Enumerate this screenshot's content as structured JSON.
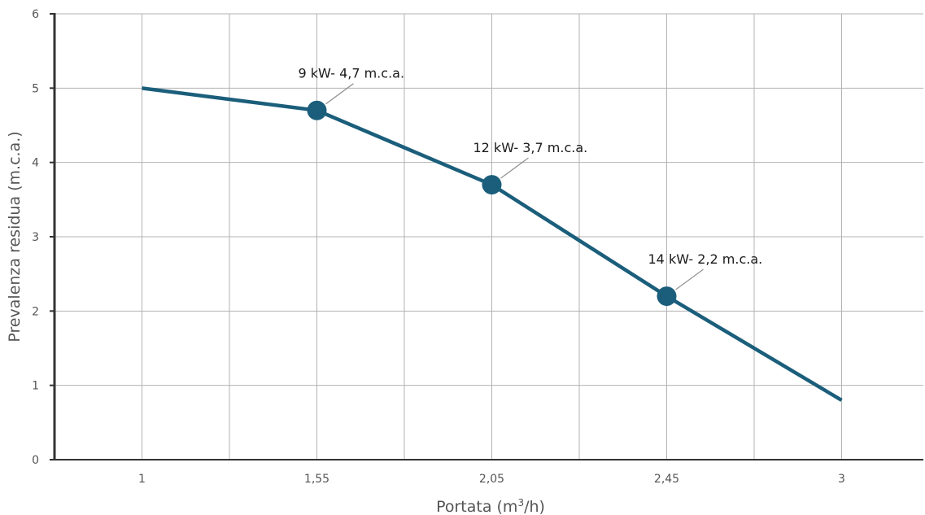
{
  "chart_data": {
    "type": "line",
    "title": "",
    "xlabel_parts": {
      "before": "Portata (m",
      "sup": "3",
      "after": "/h)"
    },
    "ylabel": "Prevalenza residua (m.c.a.)",
    "categories": [
      "1",
      "1,55",
      "2,05",
      "2,45",
      "3"
    ],
    "y_ticks": [
      "0",
      "1",
      "2",
      "3",
      "4",
      "5",
      "6"
    ],
    "ylim": [
      0,
      6
    ],
    "grid": true,
    "line_color": "#1b5e7b",
    "grid_color": "#b3b3b3",
    "axis_color": "#333333",
    "series": [
      {
        "values": [
          5.0,
          4.7,
          3.7,
          2.2,
          0.8
        ]
      }
    ],
    "markers": [
      1,
      2,
      3
    ],
    "annotations": [
      {
        "text": "9 kW- 4,7 m.c.a.",
        "point": 1
      },
      {
        "text": "12 kW- 3,7 m.c.a.",
        "point": 2
      },
      {
        "text": "14 kW- 2,2 m.c.a.",
        "point": 3
      }
    ]
  }
}
